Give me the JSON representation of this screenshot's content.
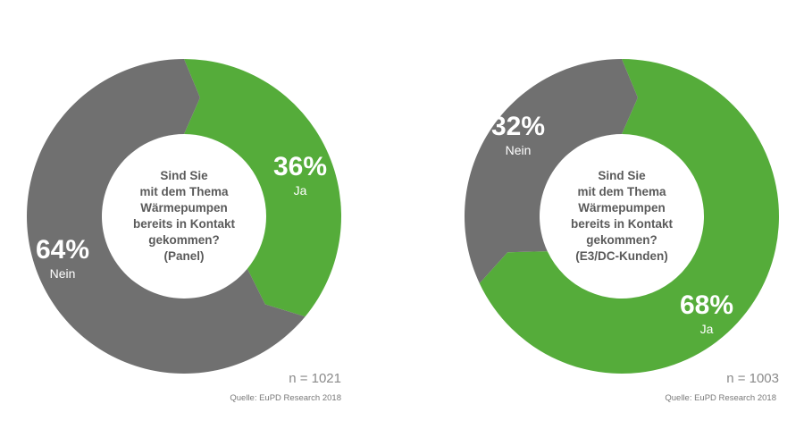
{
  "colors": {
    "ja": "#55ac3a",
    "nein": "#707070",
    "center": "#ffffff",
    "text_center": "#5a5a5a"
  },
  "charts": [
    {
      "question_lines": [
        "Sind Sie",
        "mit dem Thema",
        "Wärmepumpen",
        "bereits in Kontakt",
        "gekommen?",
        "(Panel)"
      ],
      "n_label": "n = 1021",
      "source": "Quelle: EuPD Research 2018"
    },
    {
      "question_lines": [
        "Sind Sie",
        "mit dem Thema",
        "Wärmepumpen",
        "bereits in Kontakt",
        "gekommen?",
        "(E3/DC-Kunden)"
      ],
      "n_label": "n = 1003",
      "source": "Quelle: EuPD Research 2018"
    }
  ],
  "chart_data": [
    {
      "type": "pie",
      "categories": [
        "Ja",
        "Nein"
      ],
      "values": [
        36,
        64
      ],
      "value_labels": [
        "36%",
        "64%"
      ],
      "title": "Sind Sie mit dem Thema Wärmepumpen bereits in Kontakt gekommen? (Panel)"
    },
    {
      "type": "pie",
      "categories": [
        "Ja",
        "Nein"
      ],
      "values": [
        68,
        32
      ],
      "value_labels": [
        "68%",
        "32%"
      ],
      "title": "Sind Sie mit dem Thema Wärmepumpen bereits in Kontakt gekommen? (E3/DC-Kunden)"
    }
  ]
}
